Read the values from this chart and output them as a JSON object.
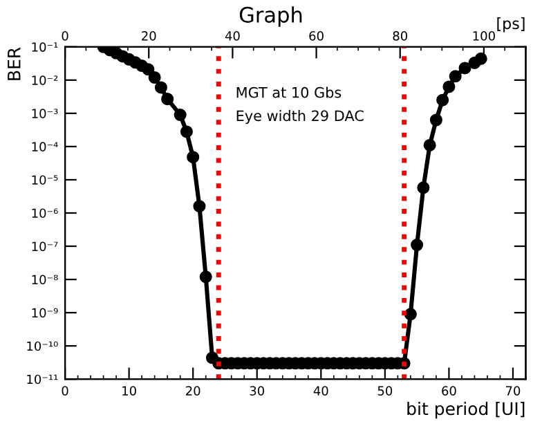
{
  "chart_data": {
    "type": "line",
    "title": "Graph",
    "xlabel": "bit period [UI]",
    "ylabel": "BER",
    "x2label": "[ps]",
    "annotations": [
      "MGT at 10 Gbs",
      "Eye width 29 DAC"
    ],
    "series": [
      {
        "color": "#000000",
        "x": [
          6,
          7,
          8,
          9,
          10,
          11,
          12,
          13,
          14,
          15,
          16,
          18,
          19,
          20,
          21,
          22,
          23,
          24,
          25,
          26,
          27,
          28,
          29,
          30,
          31,
          32,
          33,
          34,
          35,
          36,
          37,
          38,
          39,
          40,
          41,
          42,
          43,
          44,
          45,
          46,
          47,
          48,
          49,
          50,
          51,
          52,
          53,
          54,
          55,
          56,
          57,
          58,
          59,
          60,
          61,
          62.5,
          64,
          65
        ],
        "values": [
          0.1,
          0.08,
          0.065,
          0.052,
          0.042,
          0.034,
          0.027,
          0.021,
          0.012,
          0.006,
          0.0027,
          0.0009,
          0.00028,
          4.8e-05,
          1.6e-06,
          1.2e-08,
          4.4e-11,
          3e-11,
          3e-11,
          3e-11,
          3e-11,
          3e-11,
          3e-11,
          3e-11,
          3e-11,
          3e-11,
          3e-11,
          3e-11,
          3e-11,
          3e-11,
          3e-11,
          3e-11,
          3e-11,
          3e-11,
          3e-11,
          3e-11,
          3e-11,
          3e-11,
          3e-11,
          3e-11,
          3e-11,
          3e-11,
          3e-11,
          3e-11,
          3e-11,
          3e-11,
          3e-11,
          9e-10,
          1.1e-07,
          5.8e-06,
          0.00011,
          0.00063,
          0.0025,
          0.0063,
          0.013,
          0.023,
          0.033,
          0.044
        ]
      }
    ],
    "marker": "circle",
    "line_style": "solid",
    "log": "y",
    "grid": false,
    "xlim": [
      0,
      72
    ],
    "xticks": [
      0,
      10,
      20,
      30,
      40,
      50,
      60,
      70
    ],
    "x2lim": [
      0,
      110
    ],
    "x2ticks": [
      0,
      20,
      40,
      60,
      80,
      100
    ],
    "ylim": [
      1e-11,
      0.1
    ],
    "yticks": [
      {
        "value": 1e-11,
        "label": "10⁻¹¹"
      },
      {
        "value": 1e-10,
        "label": "10⁻¹⁰"
      },
      {
        "value": 1e-09,
        "label": "10⁻⁹"
      },
      {
        "value": 1e-08,
        "label": "10⁻⁸"
      },
      {
        "value": 1e-07,
        "label": "10⁻⁷"
      },
      {
        "value": 1e-06,
        "label": "10⁻⁶"
      },
      {
        "value": 1e-05,
        "label": "10⁻⁵"
      },
      {
        "value": 0.0001,
        "label": "10⁻⁴"
      },
      {
        "value": 0.001,
        "label": "10⁻³"
      },
      {
        "value": 0.01,
        "label": "10⁻²"
      },
      {
        "value": 0.1,
        "label": "10⁻¹"
      }
    ],
    "ref_lines": [
      {
        "axis": "x",
        "value": 24,
        "color": "#ff0000",
        "line_style": "dotted"
      },
      {
        "axis": "x",
        "value": 53,
        "color": "#ff0000",
        "line_style": "dotted"
      }
    ]
  }
}
